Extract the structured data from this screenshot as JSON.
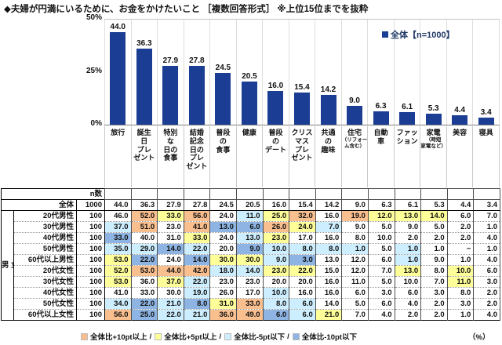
{
  "title": "◆夫婦が円満にいるために、お金をかけたいこと ［複数回答形式］ ※上位15位までを抜粋",
  "legend": {
    "label": "全体【n=1000】"
  },
  "axis": {
    "t50": "50%",
    "t25": "25%",
    "t0": "0%"
  },
  "colors": {
    "bar": "#1B3E94",
    "legend_text": "#1F3864",
    "p10": "#FABF8F",
    "p5": "#FFFF99",
    "m5": "#CDEEFF",
    "m10": "#8DB4E2"
  },
  "chart_data": {
    "type": "bar",
    "title": "夫婦が円満にいるために、お金をかけたいこと（複数回答形式・上位15位）",
    "series_name": "全体【n=1000】",
    "categories": [
      "旅行",
      "誕生日プレゼント",
      "特別な日の食事",
      "結婚記念日のプレゼント",
      "普段の食事",
      "健康",
      "普段のデート",
      "クリスマスプレゼント",
      "共通の趣味",
      "住宅（リフォーム含む）",
      "自動車",
      "ファッション",
      "家電（時短家電など）",
      "美容",
      "寝具"
    ],
    "values": [
      44.0,
      36.3,
      27.9,
      27.8,
      24.5,
      20.5,
      16.0,
      15.4,
      14.2,
      9.0,
      6.3,
      6.1,
      5.3,
      4.4,
      3.4
    ],
    "ylabel": "%",
    "ylim": [
      0,
      50
    ],
    "yticks": [
      "0%",
      "25%",
      "50%"
    ],
    "legend_position": "top-right",
    "grid": "vertical"
  },
  "cat_cells": [
    {
      "main": "旅行",
      "sub": ""
    },
    {
      "main": "誕生\n日\nプレ\nゼント",
      "sub": ""
    },
    {
      "main": "特別\nな\n日の\n食事",
      "sub": ""
    },
    {
      "main": "結婚\n記念\n日の\nプレ\nゼント",
      "sub": ""
    },
    {
      "main": "普段\nの\n食事",
      "sub": ""
    },
    {
      "main": "健康",
      "sub": ""
    },
    {
      "main": "普段\nの\nデート",
      "sub": ""
    },
    {
      "main": "クリス\nマス\nプレ\nゼント",
      "sub": ""
    },
    {
      "main": "共通\nの\n趣味",
      "sub": ""
    },
    {
      "main": "住宅",
      "sub": "（リフォー\nム含む）"
    },
    {
      "main": "自動\n車",
      "sub": ""
    },
    {
      "main": "ファッ\nション",
      "sub": ""
    },
    {
      "main": "家電",
      "sub": "（時短\n家電など）"
    },
    {
      "main": "美容",
      "sub": ""
    },
    {
      "main": "寝具",
      "sub": ""
    }
  ],
  "table": {
    "n_header": "n数",
    "group_label": "男\n女\n・\n年\n代\n別",
    "rows": [
      {
        "label": "全体",
        "n": "1000",
        "values": [
          "44.0",
          "36.3",
          "27.9",
          "27.8",
          "24.5",
          "20.5",
          "16.0",
          "15.4",
          "14.2",
          "9.0",
          "6.3",
          "6.1",
          "5.3",
          "4.4",
          "3.4"
        ],
        "colors": [
          "",
          "",
          "",
          "",
          "",
          "",
          "",
          "",
          "",
          "",
          "",
          "",
          "",
          "",
          ""
        ]
      },
      {
        "label": "20代男性",
        "n": "100",
        "values": [
          "46.0",
          "52.0",
          "33.0",
          "56.0",
          "24.0",
          "11.0",
          "25.0",
          "32.0",
          "16.0",
          "19.0",
          "12.0",
          "13.0",
          "14.0",
          "6.0",
          "7.0"
        ],
        "colors": [
          "",
          "p10",
          "p5",
          "p10",
          "",
          "m5",
          "p5",
          "p10",
          "",
          "p10",
          "p5",
          "p5",
          "p5",
          "",
          ""
        ]
      },
      {
        "label": "30代男性",
        "n": "100",
        "values": [
          "37.0",
          "51.0",
          "23.0",
          "41.0",
          "13.0",
          "6.0",
          "26.0",
          "24.0",
          "7.0",
          "9.0",
          "5.0",
          "9.0",
          "5.0",
          "2.0",
          "1.0"
        ],
        "colors": [
          "m5",
          "p10",
          "",
          "p10",
          "m10",
          "m10",
          "p10",
          "p5",
          "m5",
          "",
          "",
          "",
          "",
          "",
          ""
        ]
      },
      {
        "label": "40代男性",
        "n": "100",
        "values": [
          "33.0",
          "40.0",
          "31.0",
          "33.0",
          "24.0",
          "13.0",
          "23.0",
          "17.0",
          "16.0",
          "8.0",
          "10.0",
          "2.0",
          "2.0",
          "2.0",
          "4.0"
        ],
        "colors": [
          "m10",
          "",
          "",
          "p5",
          "",
          "m5",
          "p5",
          "",
          "",
          "",
          "",
          "",
          "",
          "",
          ""
        ]
      },
      {
        "label": "50代男性",
        "n": "100",
        "values": [
          "35.0",
          "29.0",
          "14.0",
          "22.0",
          "20.0",
          "9.0",
          "10.0",
          "8.0",
          "8.0",
          "1.0",
          "5.0",
          "1.0",
          "1.0",
          "−",
          "1.0"
        ],
        "colors": [
          "m5",
          "m5",
          "m10",
          "m5",
          "",
          "m10",
          "m5",
          "m5",
          "m5",
          "m5",
          "",
          "m5",
          "",
          "",
          ""
        ]
      },
      {
        "label": "60代以上男性",
        "n": "100",
        "values": [
          "53.0",
          "22.0",
          "24.0",
          "14.0",
          "30.0",
          "30.0",
          "9.0",
          "3.0",
          "13.0",
          "12.0",
          "6.0",
          "1.0",
          "9.0",
          "1.0",
          "4.0"
        ],
        "colors": [
          "p5",
          "m10",
          "",
          "m10",
          "p5",
          "p5",
          "m5",
          "m10",
          "",
          "",
          "",
          "m5",
          "",
          "",
          ""
        ]
      },
      {
        "label": "20代女性",
        "n": "100",
        "values": [
          "52.0",
          "53.0",
          "44.0",
          "42.0",
          "18.0",
          "14.0",
          "23.0",
          "22.0",
          "15.0",
          "12.0",
          "7.0",
          "13.0",
          "8.0",
          "10.0",
          "6.0"
        ],
        "colors": [
          "p5",
          "p10",
          "p10",
          "p10",
          "m5",
          "m5",
          "p5",
          "p5",
          "",
          "",
          "",
          "p5",
          "",
          "p5",
          ""
        ]
      },
      {
        "label": "30代女性",
        "n": "100",
        "values": [
          "53.0",
          "36.0",
          "37.0",
          "22.0",
          "23.0",
          "23.0",
          "20.0",
          "20.0",
          "16.0",
          "11.0",
          "5.0",
          "10.0",
          "7.0",
          "11.0",
          "3.0"
        ],
        "colors": [
          "p5",
          "",
          "p5",
          "m5",
          "",
          "",
          "",
          "",
          "",
          "",
          "",
          "",
          "",
          "p5",
          ""
        ]
      },
      {
        "label": "40代女性",
        "n": "100",
        "values": [
          "41.0",
          "33.0",
          "30.0",
          "19.0",
          "26.0",
          "17.0",
          "10.0",
          "16.0",
          "16.0",
          "6.0",
          "3.0",
          "6.0",
          "3.0",
          "8.0",
          "2.0"
        ],
        "colors": [
          "",
          "",
          "",
          "m5",
          "",
          "",
          "m5",
          "",
          "",
          "",
          "",
          "",
          "",
          "",
          ""
        ]
      },
      {
        "label": "50代女性",
        "n": "100",
        "values": [
          "34.0",
          "22.0",
          "21.0",
          "8.0",
          "31.0",
          "33.0",
          "8.0",
          "6.0",
          "14.0",
          "5.0",
          "6.0",
          "4.0",
          "2.0",
          "3.0",
          "2.0"
        ],
        "colors": [
          "m5",
          "m10",
          "m5",
          "m10",
          "p5",
          "p10",
          "m5",
          "m5",
          "",
          "",
          "",
          "",
          "",
          "",
          ""
        ]
      },
      {
        "label": "60代以上女性",
        "n": "100",
        "values": [
          "56.0",
          "25.0",
          "22.0",
          "21.0",
          "36.0",
          "49.0",
          "6.0",
          "6.0",
          "21.0",
          "7.0",
          "4.0",
          "2.0",
          "2.0",
          "1.0",
          "4.0"
        ],
        "colors": [
          "p10",
          "m10",
          "m5",
          "m5",
          "p10",
          "p10",
          "m10",
          "m5",
          "p5",
          "",
          "",
          "",
          "",
          "",
          ""
        ]
      }
    ]
  },
  "footer": {
    "separator": "/",
    "items": [
      {
        "key": "p10",
        "label": "全体比+10pt以上"
      },
      {
        "key": "p5",
        "label": "全体比+5pt以上"
      },
      {
        "key": "m5",
        "label": "全体比-5pt以下"
      },
      {
        "key": "m10",
        "label": "全体比-10pt以下"
      }
    ],
    "unit": "（%）"
  }
}
